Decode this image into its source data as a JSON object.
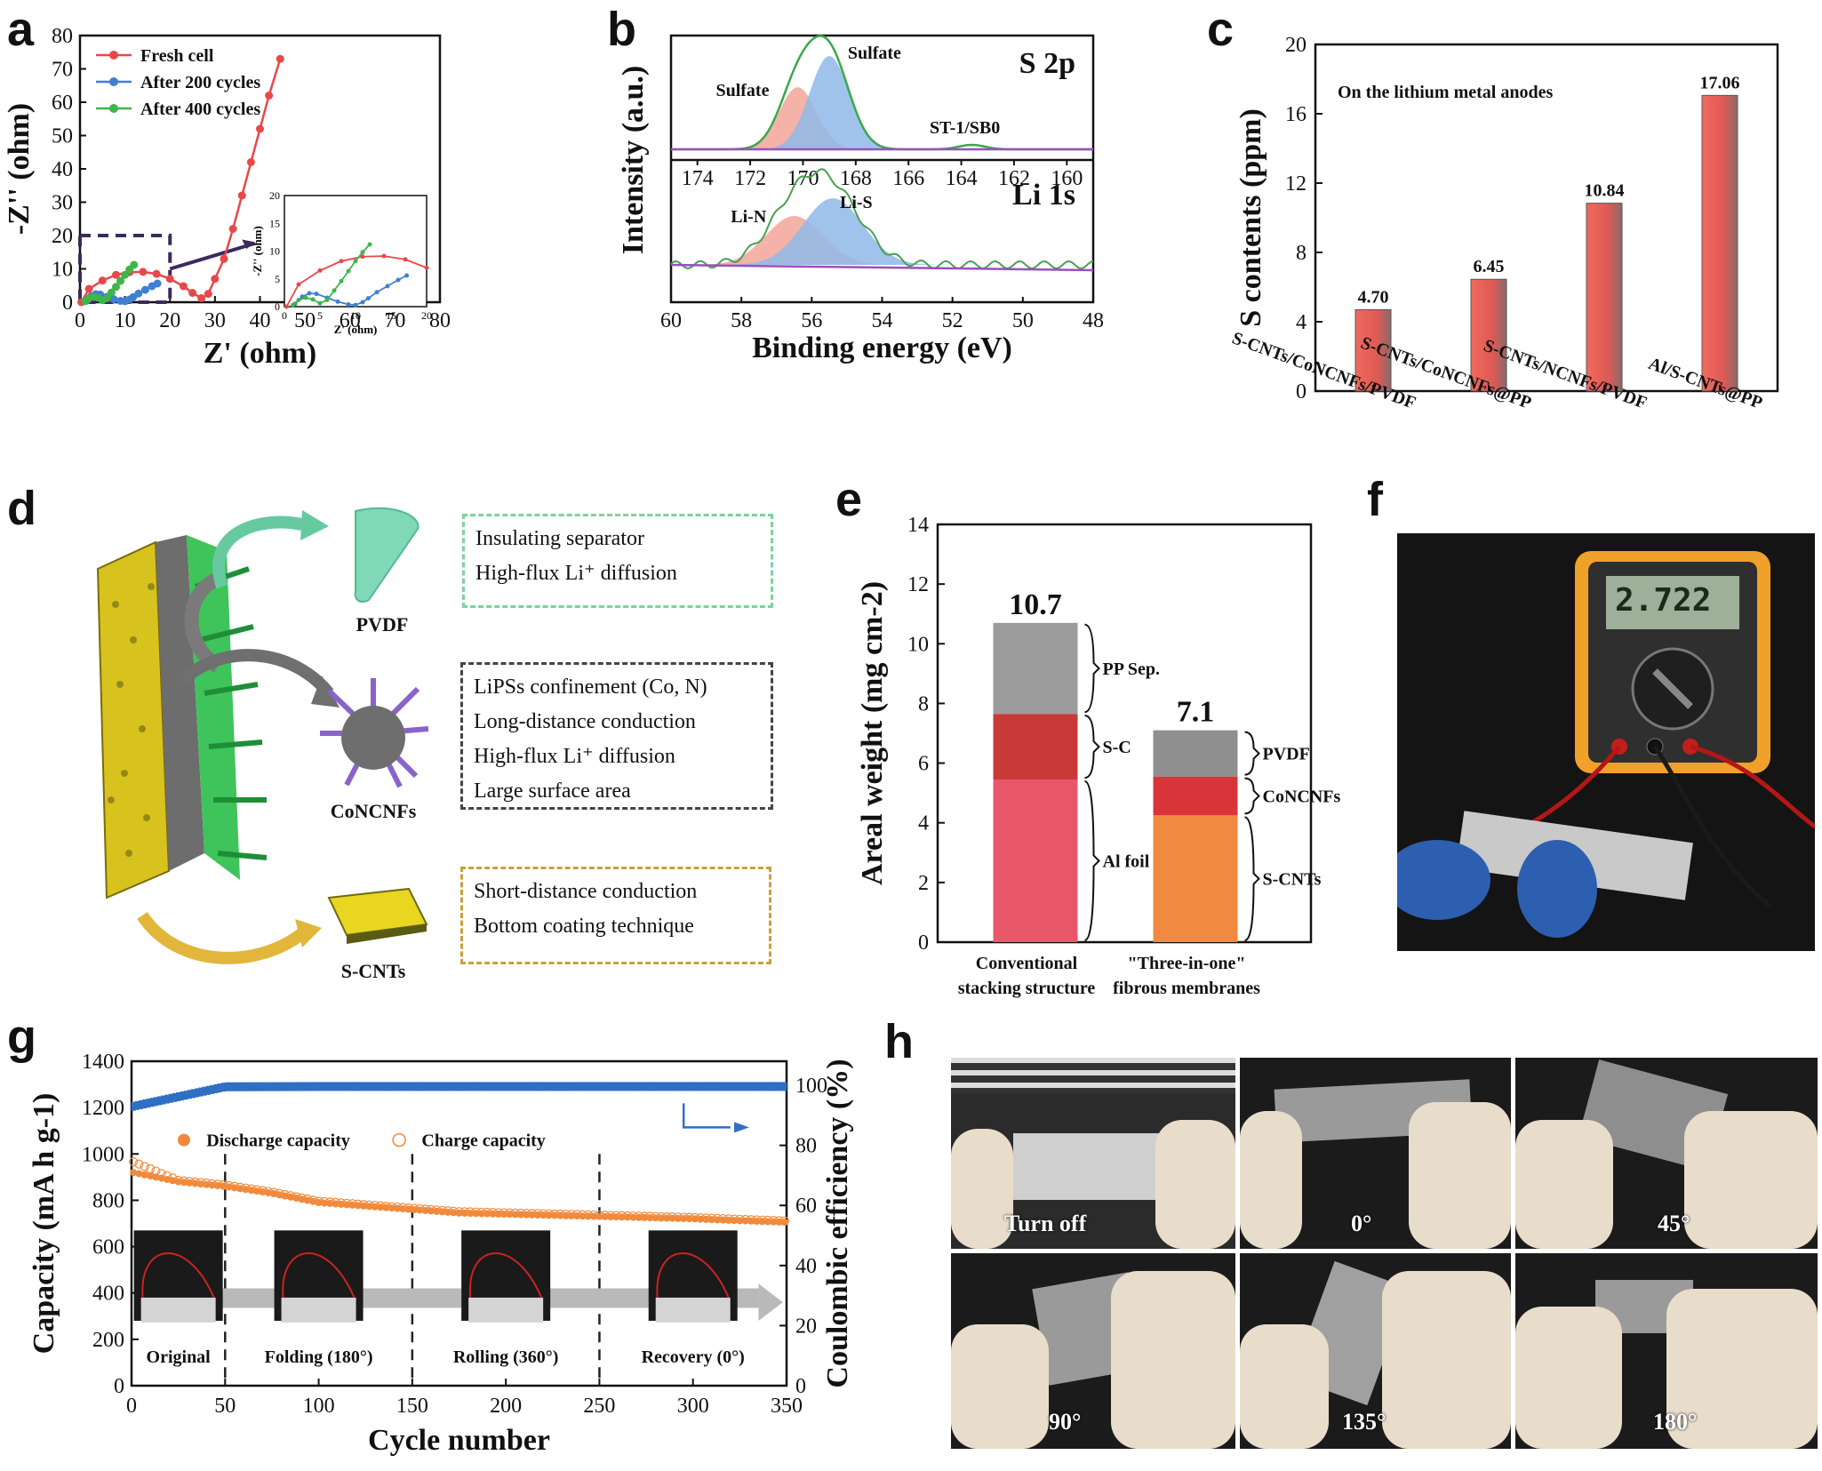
{
  "panels": {
    "a": "a",
    "b": "b",
    "c": "c",
    "d": "d",
    "e": "e",
    "f": "f",
    "g": "g",
    "h": "h"
  },
  "colors": {
    "fresh": "#e8484a",
    "c200": "#3f7fd4",
    "c400": "#3fb54a",
    "bar": "#e9625a",
    "dashed": "#3b2a5e",
    "sulfate_red": "#f2a49a",
    "sulfate_blue": "#8fb9e8",
    "capacity": "#f08a3c",
    "ce": "#2f6fc4"
  },
  "chart_data": [
    {
      "panel": "a",
      "type": "scatter",
      "xlabel": "Z' (ohm)",
      "ylabel": "-Z'' (ohm)",
      "xlim": [
        0,
        80
      ],
      "ylim": [
        0,
        80
      ],
      "xticks": [
        "0",
        "10",
        "20",
        "30",
        "40",
        "50",
        "60",
        "70",
        "80"
      ],
      "yticks": [
        "0",
        "10",
        "20",
        "30",
        "40",
        "50",
        "60",
        "70",
        "80"
      ],
      "legend": "top-left",
      "series": [
        {
          "name": "Fresh cell",
          "color": "#e8484a",
          "x": [
            0.3,
            2,
            5,
            8,
            11,
            14,
            17,
            20,
            23,
            25,
            27,
            28.5,
            30,
            32,
            34,
            36,
            38,
            40,
            42,
            44.5
          ],
          "y": [
            0,
            4,
            6.5,
            8.2,
            9.0,
            9.1,
            8.5,
            7.0,
            4.8,
            2.8,
            1.2,
            2.5,
            7,
            13,
            22,
            32,
            42,
            52,
            62,
            73
          ]
        },
        {
          "name": "After 200 cycles",
          "color": "#3f7fd4",
          "x": [
            1.5,
            2.5,
            3.5,
            4.5,
            6,
            7.5,
            9,
            10,
            11,
            11.8,
            13,
            14.5,
            16,
            17.2
          ],
          "y": [
            0.5,
            1.8,
            2.4,
            2.3,
            1.6,
            0.9,
            0.4,
            0.3,
            0.8,
            1.5,
            2.6,
            3.7,
            4.8,
            5.6
          ]
        },
        {
          "name": "After 400 cycles",
          "color": "#3fb54a",
          "x": [
            1.2,
            2,
            3,
            4,
            5,
            6,
            7,
            8,
            9,
            10,
            11,
            12
          ],
          "y": [
            0.3,
            1.2,
            1.6,
            1.3,
            0.6,
            1.2,
            2.9,
            4.6,
            6.4,
            8.2,
            9.8,
            11.2
          ]
        }
      ],
      "inset": {
        "xlim": [
          0,
          20
        ],
        "ylim": [
          0,
          20
        ],
        "xticks": [
          "0",
          "5",
          "10",
          "15",
          "20"
        ],
        "yticks": [
          "0",
          "5",
          "10",
          "15",
          "20"
        ],
        "xlabel": "Z' (ohm)",
        "ylabel": "-Z'' (ohm)"
      }
    },
    {
      "panel": "b",
      "type": "line",
      "ylabel": "Intensity (a.u.)",
      "xlabel": "Binding energy (eV)",
      "top": {
        "label": "S 2p",
        "xlim": [
          175,
          159
        ],
        "xticks": [
          "174",
          "172",
          "170",
          "168",
          "166",
          "164",
          "162",
          "160"
        ],
        "annotations": [
          "Sulfate",
          "Sulfate",
          "ST-1/SB0"
        ]
      },
      "bottom": {
        "label": "Li 1s",
        "xlim": [
          60,
          48
        ],
        "xticks": [
          "60",
          "58",
          "56",
          "54",
          "52",
          "50",
          "48"
        ],
        "annotations": [
          "Li-N",
          "Li-S"
        ]
      }
    },
    {
      "panel": "c",
      "type": "bar",
      "title": "On the lithium metal anodes",
      "ylabel": "S contents (ppm)",
      "ylim": [
        0,
        20
      ],
      "yticks": [
        "0",
        "4",
        "8",
        "12",
        "16",
        "20"
      ],
      "categories": [
        "S-CNTs/CoNCNFs/PVDF",
        "S-CNTs/CoNCNFs@PP",
        "S-CNTs/NCNFs/PVDF",
        "Al/S-CNTs@PP"
      ],
      "values": [
        4.7,
        6.45,
        10.84,
        17.06
      ],
      "value_labels": [
        "4.70",
        "6.45",
        "10.84",
        "17.06"
      ]
    },
    {
      "panel": "e",
      "type": "bar",
      "ylabel": "Areal weight (mg cm-2)",
      "ylim": [
        0,
        14
      ],
      "yticks": [
        "0",
        "2",
        "4",
        "6",
        "8",
        "10",
        "12",
        "14"
      ],
      "categories": [
        "Conventional stacking structure",
        "\"Three-in-one\" fibrous membranes"
      ],
      "stacks": [
        {
          "total_label": "10.7",
          "segments": [
            {
              "name": "Al foil",
              "value": 5.45
            },
            {
              "name": "S-C",
              "value": 2.2
            },
            {
              "name": "PP Sep.",
              "value": 3.05
            }
          ]
        },
        {
          "total_label": "7.1",
          "segments": [
            {
              "name": "S-CNTs",
              "value": 4.25
            },
            {
              "name": "CoNCNFs",
              "value": 1.3
            },
            {
              "name": "PVDF",
              "value": 1.55
            }
          ]
        }
      ]
    },
    {
      "panel": "g",
      "type": "scatter",
      "xlabel": "Cycle number",
      "ylabel": "Capacity (mA h g-1)",
      "y2label": "Coulombic efficiency (%)",
      "xlim": [
        0,
        350
      ],
      "ylim": [
        0,
        1400
      ],
      "y2lim": [
        0,
        108
      ],
      "xticks": [
        "0",
        "50",
        "100",
        "150",
        "200",
        "250",
        "300",
        "350"
      ],
      "yticks": [
        "0",
        "200",
        "400",
        "600",
        "800",
        "1000",
        "1200",
        "1400"
      ],
      "y2ticks": [
        "0",
        "20",
        "40",
        "60",
        "80",
        "100"
      ],
      "series": [
        {
          "name": "Discharge capacity",
          "color": "#f08a3c",
          "x": [
            1,
            25,
            50,
            75,
            100,
            125,
            150,
            175,
            200,
            225,
            250,
            275,
            300,
            325,
            350
          ],
          "y": [
            920,
            880,
            860,
            830,
            790,
            775,
            760,
            745,
            740,
            735,
            730,
            725,
            720,
            712,
            705
          ]
        },
        {
          "name": "Charge capacity",
          "color": "#f08a3c",
          "x": [
            1,
            25,
            50,
            75,
            100,
            125,
            150,
            175,
            200,
            225,
            250,
            275,
            300,
            325,
            350
          ],
          "y": [
            960,
            880,
            860,
            830,
            790,
            775,
            760,
            745,
            740,
            735,
            730,
            725,
            720,
            712,
            705
          ]
        },
        {
          "name": "Coulombic efficiency",
          "color": "#2f6fc4",
          "x": [
            1,
            50,
            100,
            150,
            200,
            250,
            300,
            350
          ],
          "y": [
            93,
            99.5,
            99.6,
            99.6,
            99.6,
            99.6,
            99.6,
            99.6
          ]
        }
      ],
      "stages": [
        "Original",
        "Folding (180°)",
        "Rolling (360°)",
        "Recovery (0°)"
      ]
    }
  ],
  "diagram_d": {
    "labels": {
      "pvdf": "PVDF",
      "concnfs": "CoNCNFs",
      "scnts": "S-CNTs"
    },
    "boxes": [
      [
        "Insulating separator",
        "High-flux Li⁺ diffusion"
      ],
      [
        "LiPSs confinement (Co, N)",
        "Long-distance conduction",
        "High-flux Li⁺ diffusion",
        "Large surface area"
      ],
      [
        "Short-distance conduction",
        "Bottom coating technique"
      ]
    ]
  },
  "photo_f": {
    "display": "2.722"
  },
  "photo_h": [
    "Turn off",
    "0°",
    "45°",
    "90°",
    "135°",
    "180°"
  ]
}
